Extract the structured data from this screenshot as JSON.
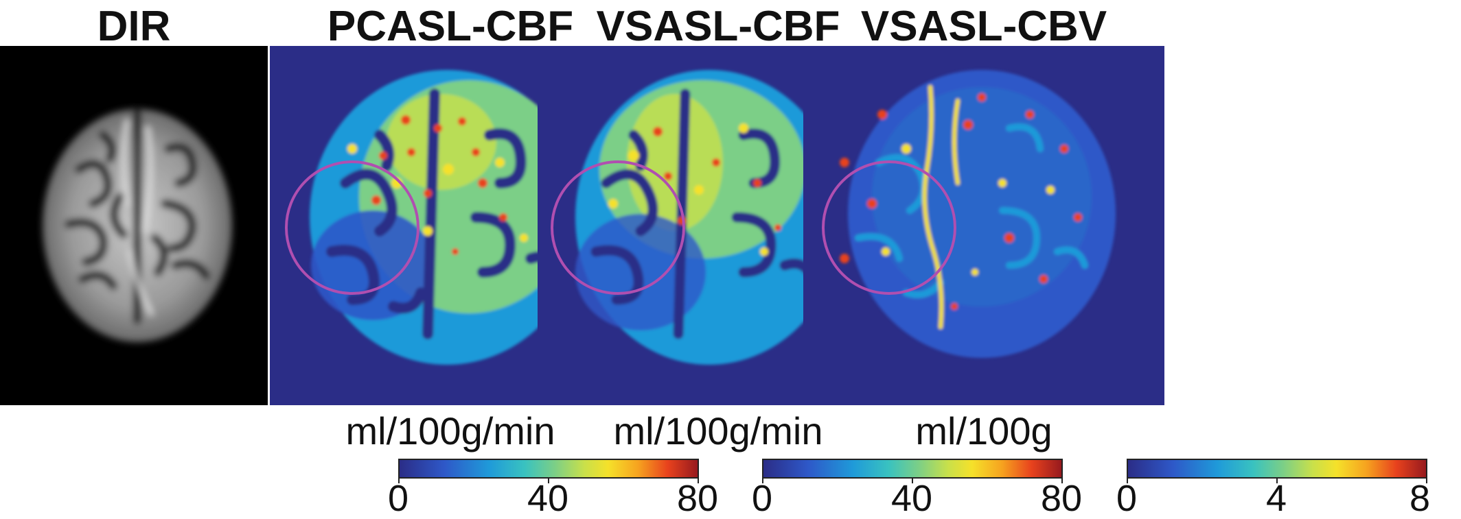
{
  "panels": [
    {
      "title": "DIR"
    },
    {
      "title": "PCASL-CBF",
      "unit": "ml/100g/min",
      "ticks": [
        "0",
        "40",
        "80"
      ]
    },
    {
      "title": "VSASL-CBF",
      "unit": "ml/100g/min",
      "ticks": [
        "0",
        "40",
        "80"
      ]
    },
    {
      "title": "VSASL-CBV",
      "unit": "ml/100g",
      "ticks": [
        "0",
        "4",
        "8"
      ]
    }
  ],
  "colors": {
    "map_background": "#2b2d87",
    "dir_background": "#000000",
    "roi_circle": "#b04fb0",
    "colormap": [
      "#2b2d87",
      "#2e58c8",
      "#1f9ad9",
      "#39c2c0",
      "#7bcf87",
      "#c9e04a",
      "#f5e12a",
      "#f6a31f",
      "#e8421d",
      "#971a1e"
    ]
  }
}
